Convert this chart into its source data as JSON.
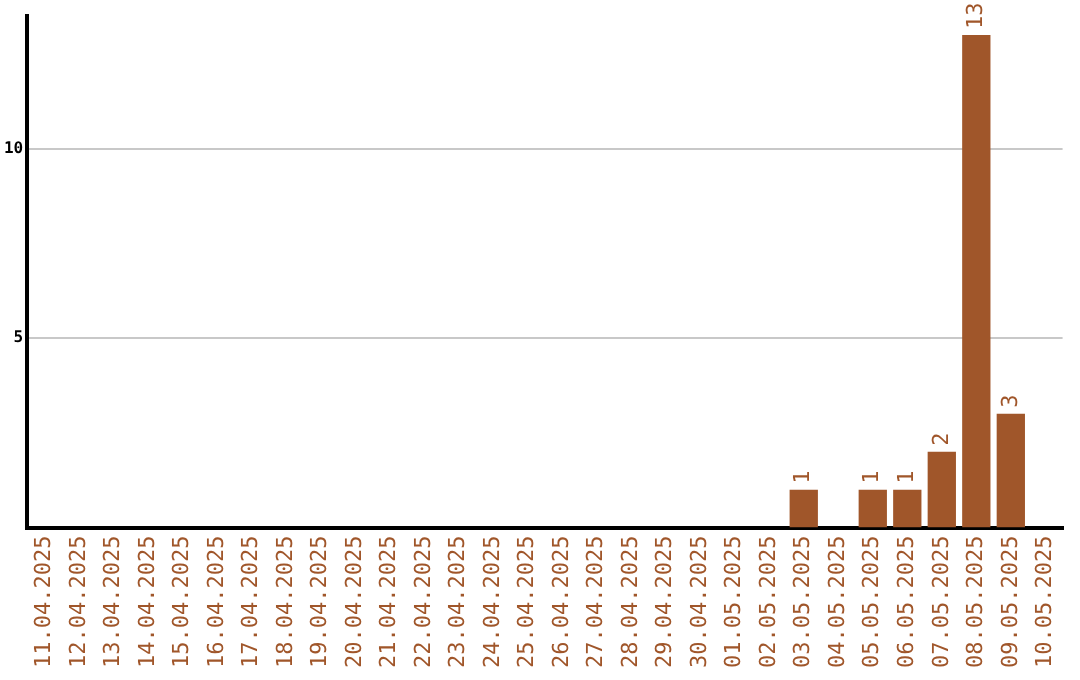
{
  "chart_data": {
    "type": "bar",
    "categories": [
      "11.04.2025",
      "12.04.2025",
      "13.04.2025",
      "14.04.2025",
      "15.04.2025",
      "16.04.2025",
      "17.04.2025",
      "18.04.2025",
      "19.04.2025",
      "20.04.2025",
      "21.04.2025",
      "22.04.2025",
      "23.04.2025",
      "24.04.2025",
      "25.04.2025",
      "26.04.2025",
      "27.04.2025",
      "28.04.2025",
      "29.04.2025",
      "30.04.2025",
      "01.05.2025",
      "02.05.2025",
      "03.05.2025",
      "04.05.2025",
      "05.05.2025",
      "06.05.2025",
      "07.05.2025",
      "08.05.2025",
      "09.05.2025",
      "10.05.2025"
    ],
    "values": [
      0,
      0,
      0,
      0,
      0,
      0,
      0,
      0,
      0,
      0,
      0,
      0,
      0,
      0,
      0,
      0,
      0,
      0,
      0,
      0,
      0,
      0,
      1,
      0,
      1,
      1,
      2,
      13,
      3,
      0
    ],
    "value_labels": [
      null,
      null,
      null,
      null,
      null,
      null,
      null,
      null,
      null,
      null,
      null,
      null,
      null,
      null,
      null,
      null,
      null,
      null,
      null,
      null,
      null,
      null,
      "1",
      null,
      "1",
      "1",
      "2",
      "13",
      "3",
      null
    ],
    "color": "#a0562a",
    "ylim": [
      0,
      13.5
    ],
    "yticks": [
      5,
      10
    ],
    "grid": "y",
    "legend": false
  }
}
